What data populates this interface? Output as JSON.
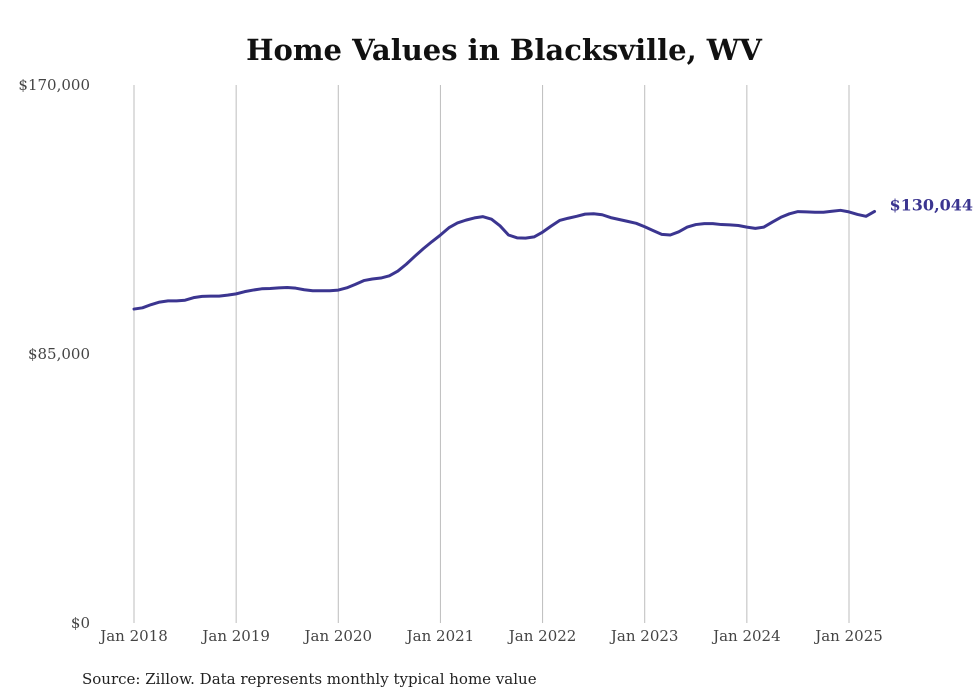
{
  "chart_data": {
    "type": "line",
    "title": "Home Values in Blacksville, WV",
    "xlabel": "",
    "ylabel": "",
    "ylim": [
      0,
      170000
    ],
    "y_ticks": [
      "$0",
      "$85,000",
      "$170,000"
    ],
    "y_tick_values": [
      0,
      85000,
      170000
    ],
    "x_ticks": [
      "Jan 2018",
      "Jan 2019",
      "Jan 2020",
      "Jan 2021",
      "Jan 2022",
      "Jan 2023",
      "Jan 2024",
      "Jan 2025"
    ],
    "x_tick_dates": [
      "2018-01",
      "2019-01",
      "2020-01",
      "2021-01",
      "2022-01",
      "2023-01",
      "2024-01",
      "2025-01"
    ],
    "grid": "vertical",
    "line_color": "#3b3590",
    "end_label": "$130,044",
    "source": "Source: Zillow. Data represents monthly typical home value",
    "series": [
      {
        "x": [
          "2018-01",
          "2018-02",
          "2018-03",
          "2018-04",
          "2018-05",
          "2018-06",
          "2018-07",
          "2018-08",
          "2018-09",
          "2018-10",
          "2018-11",
          "2018-12",
          "2019-01",
          "2019-02",
          "2019-03",
          "2019-04",
          "2019-05",
          "2019-06",
          "2019-07",
          "2019-08",
          "2019-09",
          "2019-10",
          "2019-11",
          "2019-12",
          "2020-01",
          "2020-02",
          "2020-03",
          "2020-04",
          "2020-05",
          "2020-06",
          "2020-07",
          "2020-08",
          "2020-09",
          "2020-10",
          "2020-11",
          "2020-12",
          "2021-01",
          "2021-02",
          "2021-03",
          "2021-04",
          "2021-05",
          "2021-06",
          "2021-07",
          "2021-08",
          "2021-09",
          "2021-10",
          "2021-11",
          "2021-12",
          "2022-01",
          "2022-02",
          "2022-03",
          "2022-04",
          "2022-05",
          "2022-06",
          "2022-07",
          "2022-08",
          "2022-09",
          "2022-10",
          "2022-11",
          "2022-12",
          "2023-01",
          "2023-02",
          "2023-03",
          "2023-04",
          "2023-05",
          "2023-06",
          "2023-07",
          "2023-08",
          "2023-09",
          "2023-10",
          "2023-11",
          "2023-12",
          "2024-01",
          "2024-02",
          "2024-03",
          "2024-04",
          "2024-05",
          "2024-06",
          "2024-07",
          "2024-08",
          "2024-09",
          "2024-10",
          "2024-11",
          "2024-12",
          "2025-01",
          "2025-02",
          "2025-03",
          "2025-04"
        ],
        "values": [
          99200,
          99600,
          100600,
          101400,
          101800,
          101800,
          102000,
          102800,
          103200,
          103300,
          103300,
          103600,
          104000,
          104700,
          105200,
          105600,
          105700,
          105900,
          106000,
          105800,
          105300,
          105000,
          105000,
          105000,
          105200,
          105900,
          107000,
          108200,
          108700,
          109000,
          109700,
          111200,
          113400,
          115900,
          118300,
          120500,
          122600,
          124900,
          126400,
          127300,
          128000,
          128400,
          127600,
          125500,
          122600,
          121700,
          121600,
          122000,
          123500,
          125400,
          127200,
          127900,
          128500,
          129200,
          129300,
          129000,
          128100,
          127500,
          126900,
          126300,
          125200,
          124000,
          122800,
          122600,
          123600,
          125100,
          125900,
          126200,
          126200,
          125900,
          125800,
          125600,
          125100,
          124700,
          125100,
          126700,
          128200,
          129300,
          130000,
          129900,
          129800,
          129800,
          130100,
          130400,
          129900,
          129100,
          128500,
          130044
        ]
      }
    ]
  }
}
